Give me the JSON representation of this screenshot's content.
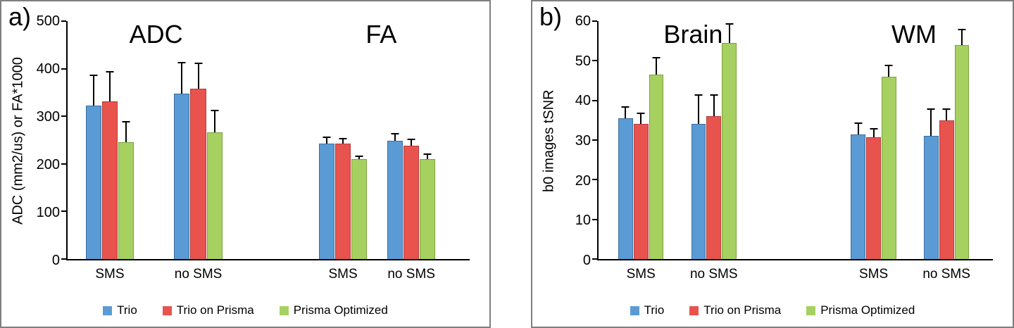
{
  "chart_data": [
    {
      "type": "bar",
      "panel_label": "a)",
      "ylabel": "ADC (mm2/us) or FA*1000",
      "ylim": [
        0,
        500
      ],
      "yticks": [
        0,
        100,
        200,
        300,
        400,
        500
      ],
      "grid": false,
      "legend_position": "bottom",
      "section_labels": [
        "ADC",
        "FA"
      ],
      "categories": [
        "SMS",
        "no SMS",
        "SMS",
        "no SMS"
      ],
      "series": [
        {
          "name": "Trio",
          "color": "#5B9BD5",
          "edge": "#3d6e9e",
          "values": [
            322,
            347,
            243,
            248
          ],
          "errors": [
            65,
            67,
            15,
            17
          ]
        },
        {
          "name": "Trio on Prisma",
          "color": "#E8534E",
          "edge": "#b23c38",
          "values": [
            332,
            358,
            242,
            238
          ],
          "errors": [
            63,
            55,
            13,
            15
          ]
        },
        {
          "name": "Prisma Optimized",
          "color": "#A6D161",
          "edge": "#79a33c",
          "values": [
            246,
            266,
            210,
            210
          ],
          "errors": [
            44,
            47,
            8,
            12
          ]
        }
      ]
    },
    {
      "type": "bar",
      "panel_label": "b)",
      "ylabel": "b0 images tSNR",
      "ylim": [
        0,
        60
      ],
      "yticks": [
        0,
        10,
        20,
        30,
        40,
        50,
        60
      ],
      "grid": false,
      "legend_position": "bottom",
      "section_labels": [
        "Brain",
        "WM"
      ],
      "categories": [
        "SMS",
        "no SMS",
        "SMS",
        "no SMS"
      ],
      "series": [
        {
          "name": "Trio",
          "color": "#5B9BD5",
          "edge": "#3d6e9e",
          "values": [
            35.5,
            34,
            31.5,
            31
          ],
          "errors": [
            3,
            7.5,
            3,
            7
          ]
        },
        {
          "name": "Trio on Prisma",
          "color": "#E8534E",
          "edge": "#b23c38",
          "values": [
            34,
            36,
            30.8,
            35
          ],
          "errors": [
            3,
            5.5,
            2.2,
            3
          ]
        },
        {
          "name": "Prisma Optimized",
          "color": "#A6D161",
          "edge": "#79a33c",
          "values": [
            46.5,
            54.5,
            46,
            54
          ],
          "errors": [
            4.5,
            5,
            3,
            4
          ]
        }
      ]
    }
  ]
}
